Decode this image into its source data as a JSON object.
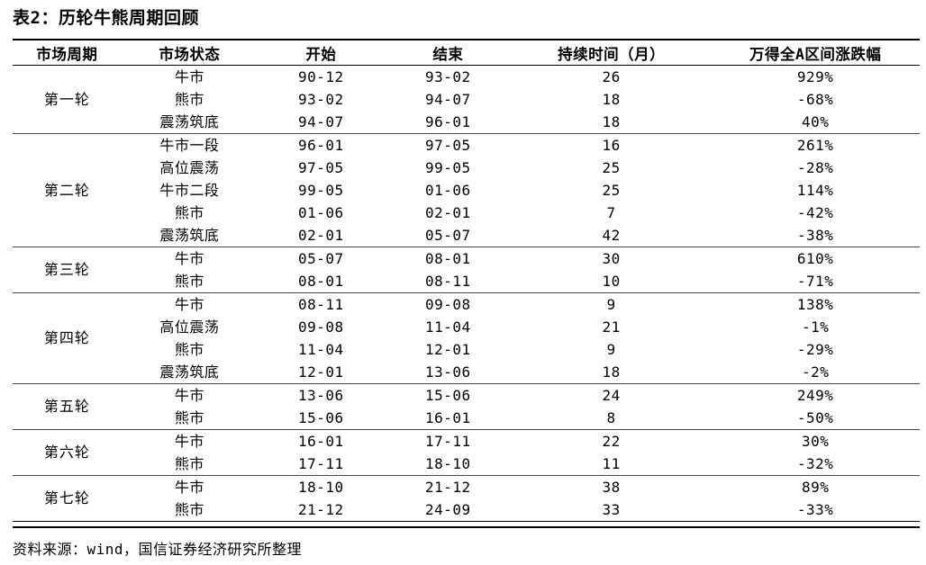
{
  "title": "表2：历轮牛熊周期回顾",
  "source": "资料来源：wind，国信证券经济研究所整理",
  "table": {
    "headers": [
      "市场周期",
      "市场状态",
      "开始",
      "结束",
      "持续时间（月）",
      "万得全A区间涨跌幅"
    ],
    "groups": [
      {
        "cycle": "第一轮",
        "rows": [
          [
            "牛市",
            "90-12",
            "93-02",
            "26",
            "929%"
          ],
          [
            "熊市",
            "93-02",
            "94-07",
            "18",
            "-68%"
          ],
          [
            "震荡筑底",
            "94-07",
            "96-01",
            "18",
            "40%"
          ]
        ]
      },
      {
        "cycle": "第二轮",
        "rows": [
          [
            "牛市一段",
            "96-01",
            "97-05",
            "16",
            "261%"
          ],
          [
            "高位震荡",
            "97-05",
            "99-05",
            "25",
            "-28%"
          ],
          [
            "牛市二段",
            "99-05",
            "01-06",
            "25",
            "114%"
          ],
          [
            "熊市",
            "01-06",
            "02-01",
            "7",
            "-42%"
          ],
          [
            "震荡筑底",
            "02-01",
            "05-07",
            "42",
            "-38%"
          ]
        ]
      },
      {
        "cycle": "第三轮",
        "rows": [
          [
            "牛市",
            "05-07",
            "08-01",
            "30",
            "610%"
          ],
          [
            "熊市",
            "08-01",
            "08-11",
            "10",
            "-71%"
          ]
        ]
      },
      {
        "cycle": "第四轮",
        "rows": [
          [
            "牛市",
            "08-11",
            "09-08",
            "9",
            "138%"
          ],
          [
            "高位震荡",
            "09-08",
            "11-04",
            "21",
            "-1%"
          ],
          [
            "熊市",
            "11-04",
            "12-01",
            "9",
            "-29%"
          ],
          [
            "震荡筑底",
            "12-01",
            "13-06",
            "18",
            "-2%"
          ]
        ]
      },
      {
        "cycle": "第五轮",
        "rows": [
          [
            "牛市",
            "13-06",
            "15-06",
            "24",
            "249%"
          ],
          [
            "熊市",
            "15-06",
            "16-01",
            "8",
            "-50%"
          ]
        ]
      },
      {
        "cycle": "第六轮",
        "rows": [
          [
            "牛市",
            "16-01",
            "17-11",
            "22",
            "30%"
          ],
          [
            "熊市",
            "17-11",
            "18-10",
            "11",
            "-32%"
          ]
        ]
      },
      {
        "cycle": "第七轮",
        "rows": [
          [
            "牛市",
            "18-10",
            "21-12",
            "38",
            "89%"
          ],
          [
            "熊市",
            "21-12",
            "24-09",
            "33",
            "-33%"
          ]
        ]
      }
    ]
  },
  "colors": {
    "text": "#000000",
    "rule_heavy": "#000000",
    "rule_light": "#4a4a4a",
    "background": "#ffffff"
  }
}
